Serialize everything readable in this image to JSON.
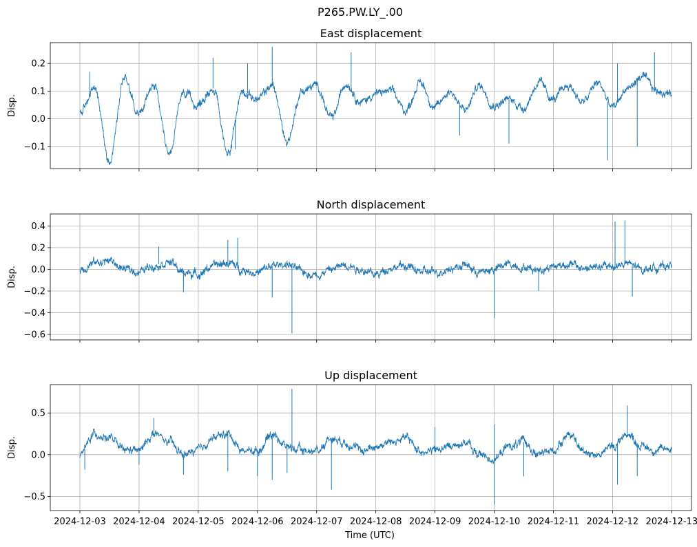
{
  "figure": {
    "suptitle": "P265.PW.LY_.00",
    "xlabel": "Time (UTC)",
    "ylabel": "Disp."
  },
  "colors": {
    "series": "#1f77b4",
    "grid": "#b0b0b0",
    "axes": "#000000"
  },
  "chart_data": [
    {
      "type": "line",
      "title": "East displacement",
      "xlabel": "",
      "ylabel": "Disp.",
      "xlim": [
        "2024-12-02T12:00",
        "2024-12-13T08:00"
      ],
      "ylim": [
        -0.18,
        0.275
      ],
      "xticks": [
        "2024-12-03",
        "2024-12-04",
        "2024-12-05",
        "2024-12-06",
        "2024-12-07",
        "2024-12-08",
        "2024-12-09",
        "2024-12-10",
        "2024-12-11",
        "2024-12-12",
        "2024-12-13"
      ],
      "xtick_labels_visible": false,
      "yticks": [
        -0.1,
        0.0,
        0.1,
        0.2
      ],
      "ytick_labels": [
        "−0.1",
        "0.0",
        "0.1",
        "0.2"
      ],
      "grid": true,
      "series": [
        {
          "x": [
            "2024-12-03T00:00",
            "2024-12-03T06:00",
            "2024-12-03T12:00",
            "2024-12-03T18:00",
            "2024-12-04T00:00",
            "2024-12-04T06:00",
            "2024-12-04T12:00",
            "2024-12-04T18:00",
            "2024-12-05T00:00",
            "2024-12-05T06:00",
            "2024-12-05T12:00",
            "2024-12-05T18:00",
            "2024-12-06T00:00",
            "2024-12-06T06:00",
            "2024-12-06T12:00",
            "2024-12-06T18:00",
            "2024-12-07T00:00",
            "2024-12-07T06:00",
            "2024-12-07T12:00",
            "2024-12-07T18:00",
            "2024-12-08T00:00",
            "2024-12-08T06:00",
            "2024-12-08T12:00",
            "2024-12-08T18:00",
            "2024-12-09T00:00",
            "2024-12-09T06:00",
            "2024-12-09T12:00",
            "2024-12-09T18:00",
            "2024-12-10T00:00",
            "2024-12-10T06:00",
            "2024-12-10T12:00",
            "2024-12-10T18:00",
            "2024-12-11T00:00",
            "2024-12-11T06:00",
            "2024-12-11T12:00",
            "2024-12-11T18:00",
            "2024-12-12T00:00",
            "2024-12-12T06:00",
            "2024-12-12T12:00",
            "2024-12-12T18:00",
            "2024-12-13T00:00"
          ],
          "y": [
            0.02,
            0.11,
            -0.15,
            0.15,
            0.02,
            0.12,
            -0.13,
            0.09,
            0.05,
            0.11,
            -0.12,
            0.1,
            0.07,
            0.12,
            -0.08,
            0.1,
            0.12,
            0.0,
            0.13,
            0.06,
            0.09,
            0.1,
            0.03,
            0.13,
            0.04,
            0.1,
            0.03,
            0.12,
            0.05,
            0.07,
            0.04,
            0.13,
            0.07,
            0.12,
            0.06,
            0.13,
            0.04,
            0.11,
            0.15,
            0.1,
            0.09
          ],
          "spikes": [
            {
              "x": "2024-12-03T04:00",
              "y": 0.17
            },
            {
              "x": "2024-12-05T06:00",
              "y": 0.22
            },
            {
              "x": "2024-12-05T12:00",
              "y": -0.13
            },
            {
              "x": "2024-12-05T15:00",
              "y": -0.11
            },
            {
              "x": "2024-12-05T20:00",
              "y": 0.2
            },
            {
              "x": "2024-12-06T06:00",
              "y": 0.26
            },
            {
              "x": "2024-12-07T14:00",
              "y": 0.24
            },
            {
              "x": "2024-12-09T10:00",
              "y": -0.06
            },
            {
              "x": "2024-12-10T06:00",
              "y": -0.09
            },
            {
              "x": "2024-12-11T22:00",
              "y": -0.15
            },
            {
              "x": "2024-12-12T02:00",
              "y": 0.2
            },
            {
              "x": "2024-12-12T10:00",
              "y": -0.1
            },
            {
              "x": "2024-12-12T17:00",
              "y": 0.24
            }
          ]
        }
      ]
    },
    {
      "type": "line",
      "title": "North displacement",
      "xlabel": "",
      "ylabel": "Disp.",
      "xlim": [
        "2024-12-02T12:00",
        "2024-12-13T08:00"
      ],
      "ylim": [
        -0.65,
        0.51
      ],
      "xticks": [
        "2024-12-03",
        "2024-12-04",
        "2024-12-05",
        "2024-12-06",
        "2024-12-07",
        "2024-12-08",
        "2024-12-09",
        "2024-12-10",
        "2024-12-11",
        "2024-12-12",
        "2024-12-13"
      ],
      "xtick_labels_visible": false,
      "yticks": [
        -0.6,
        -0.4,
        -0.2,
        0.0,
        0.2,
        0.4
      ],
      "ytick_labels": [
        "−0.6",
        "−0.4",
        "−0.2",
        "0.0",
        "0.2",
        "0.4"
      ],
      "grid": true,
      "series": [
        {
          "x": [
            "2024-12-03T00:00",
            "2024-12-03T06:00",
            "2024-12-03T12:00",
            "2024-12-03T18:00",
            "2024-12-04T00:00",
            "2024-12-04T06:00",
            "2024-12-04T12:00",
            "2024-12-04T18:00",
            "2024-12-05T00:00",
            "2024-12-05T06:00",
            "2024-12-05T12:00",
            "2024-12-05T18:00",
            "2024-12-06T00:00",
            "2024-12-06T06:00",
            "2024-12-06T12:00",
            "2024-12-06T18:00",
            "2024-12-07T00:00",
            "2024-12-07T06:00",
            "2024-12-07T12:00",
            "2024-12-07T18:00",
            "2024-12-08T00:00",
            "2024-12-08T06:00",
            "2024-12-08T12:00",
            "2024-12-08T18:00",
            "2024-12-09T00:00",
            "2024-12-09T06:00",
            "2024-12-09T12:00",
            "2024-12-09T18:00",
            "2024-12-10T00:00",
            "2024-12-10T06:00",
            "2024-12-10T12:00",
            "2024-12-10T18:00",
            "2024-12-11T00:00",
            "2024-12-11T06:00",
            "2024-12-11T12:00",
            "2024-12-11T18:00",
            "2024-12-12T00:00",
            "2024-12-12T06:00",
            "2024-12-12T12:00",
            "2024-12-12T18:00",
            "2024-12-13T00:00"
          ],
          "y": [
            0.0,
            0.06,
            0.08,
            0.0,
            -0.02,
            0.04,
            0.07,
            -0.03,
            -0.04,
            0.03,
            0.06,
            0.0,
            -0.03,
            0.03,
            0.05,
            -0.02,
            -0.05,
            0.0,
            0.05,
            0.0,
            -0.05,
            0.02,
            0.03,
            -0.02,
            -0.03,
            0.01,
            0.04,
            -0.03,
            0.0,
            0.05,
            0.02,
            0.0,
            0.03,
            0.05,
            0.01,
            0.02,
            0.03,
            0.05,
            0.0,
            0.02,
            0.04
          ],
          "spikes": [
            {
              "x": "2024-12-04T08:00",
              "y": 0.21
            },
            {
              "x": "2024-12-04T18:00",
              "y": -0.21
            },
            {
              "x": "2024-12-05T12:00",
              "y": 0.27
            },
            {
              "x": "2024-12-05T16:00",
              "y": 0.29
            },
            {
              "x": "2024-12-06T06:00",
              "y": -0.26
            },
            {
              "x": "2024-12-06T14:00",
              "y": -0.59
            },
            {
              "x": "2024-12-10T00:00",
              "y": -0.45
            },
            {
              "x": "2024-12-10T18:00",
              "y": -0.2
            },
            {
              "x": "2024-12-12T01:00",
              "y": 0.44
            },
            {
              "x": "2024-12-12T05:00",
              "y": 0.45
            },
            {
              "x": "2024-12-12T08:00",
              "y": -0.25
            }
          ]
        }
      ]
    },
    {
      "type": "line",
      "title": "Up displacement",
      "xlabel": "Time (UTC)",
      "ylabel": "Disp.",
      "xlim": [
        "2024-12-02T12:00",
        "2024-12-13T08:00"
      ],
      "ylim": [
        -0.67,
        0.84
      ],
      "xticks": [
        "2024-12-03",
        "2024-12-04",
        "2024-12-05",
        "2024-12-06",
        "2024-12-07",
        "2024-12-08",
        "2024-12-09",
        "2024-12-10",
        "2024-12-11",
        "2024-12-12",
        "2024-12-13"
      ],
      "xtick_labels": [
        "2024-12-03",
        "2024-12-04",
        "2024-12-05",
        "2024-12-06",
        "2024-12-07",
        "2024-12-08",
        "2024-12-09",
        "2024-12-10",
        "2024-12-11",
        "2024-12-12",
        "2024-12-13"
      ],
      "xtick_labels_visible": true,
      "yticks": [
        -0.5,
        0.0,
        0.5
      ],
      "ytick_labels": [
        "−0.5",
        "0.0",
        "0.5"
      ],
      "grid": true,
      "series": [
        {
          "x": [
            "2024-12-03T00:00",
            "2024-12-03T06:00",
            "2024-12-03T12:00",
            "2024-12-03T18:00",
            "2024-12-04T00:00",
            "2024-12-04T06:00",
            "2024-12-04T12:00",
            "2024-12-04T18:00",
            "2024-12-05T00:00",
            "2024-12-05T06:00",
            "2024-12-05T12:00",
            "2024-12-05T18:00",
            "2024-12-06T00:00",
            "2024-12-06T06:00",
            "2024-12-06T12:00",
            "2024-12-06T18:00",
            "2024-12-07T00:00",
            "2024-12-07T06:00",
            "2024-12-07T12:00",
            "2024-12-07T18:00",
            "2024-12-08T00:00",
            "2024-12-08T06:00",
            "2024-12-08T12:00",
            "2024-12-08T18:00",
            "2024-12-09T00:00",
            "2024-12-09T06:00",
            "2024-12-09T12:00",
            "2024-12-09T18:00",
            "2024-12-10T00:00",
            "2024-12-10T06:00",
            "2024-12-10T12:00",
            "2024-12-10T18:00",
            "2024-12-11T00:00",
            "2024-12-11T06:00",
            "2024-12-11T12:00",
            "2024-12-11T18:00",
            "2024-12-12T00:00",
            "2024-12-12T06:00",
            "2024-12-12T12:00",
            "2024-12-12T18:00",
            "2024-12-13T00:00"
          ],
          "y": [
            0.0,
            0.25,
            0.2,
            0.05,
            0.05,
            0.25,
            0.15,
            0.0,
            0.05,
            0.2,
            0.25,
            0.05,
            0.05,
            0.25,
            0.1,
            0.05,
            0.05,
            0.2,
            0.15,
            0.05,
            0.1,
            0.15,
            0.2,
            0.05,
            0.05,
            0.1,
            0.15,
            0.0,
            -0.05,
            0.1,
            0.15,
            0.0,
            0.05,
            0.25,
            0.05,
            0.0,
            0.1,
            0.25,
            0.1,
            0.05,
            0.08
          ],
          "spikes": [
            {
              "x": "2024-12-03T02:00",
              "y": -0.18
            },
            {
              "x": "2024-12-04T06:00",
              "y": 0.44
            },
            {
              "x": "2024-12-04T00:00",
              "y": -0.12
            },
            {
              "x": "2024-12-04T18:00",
              "y": -0.24
            },
            {
              "x": "2024-12-05T12:00",
              "y": -0.2
            },
            {
              "x": "2024-12-06T00:00",
              "y": -0.26
            },
            {
              "x": "2024-12-06T06:00",
              "y": -0.3
            },
            {
              "x": "2024-12-06T14:00",
              "y": 0.79
            },
            {
              "x": "2024-12-06T12:00",
              "y": -0.22
            },
            {
              "x": "2024-12-07T06:00",
              "y": -0.42
            },
            {
              "x": "2024-12-09T00:00",
              "y": 0.33
            },
            {
              "x": "2024-12-10T00:00",
              "y": 0.36
            },
            {
              "x": "2024-12-10T00:00",
              "y": -0.6
            },
            {
              "x": "2024-12-10T12:00",
              "y": -0.26
            },
            {
              "x": "2024-12-12T02:00",
              "y": -0.36
            },
            {
              "x": "2024-12-12T06:00",
              "y": 0.59
            },
            {
              "x": "2024-12-12T10:00",
              "y": -0.26
            }
          ]
        }
      ]
    }
  ]
}
